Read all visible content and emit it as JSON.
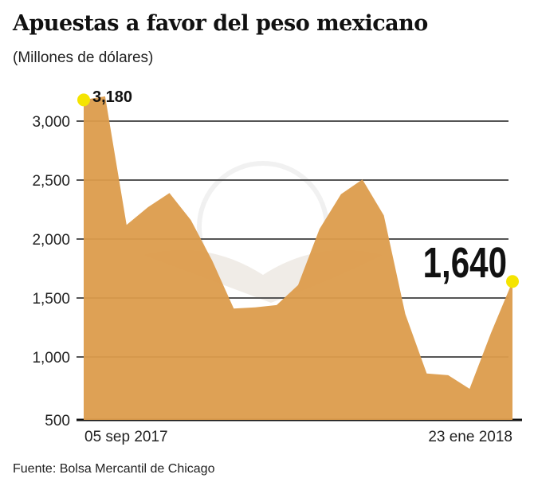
{
  "title": "Apuestas a favor del peso mexicano",
  "subtitle": "(Millones de dólares)",
  "source": "Fuente: Bolsa Mercantil de Chicago",
  "colors": {
    "area": "#DC9C4C",
    "highlight": "#F5E400",
    "grid": "#555555"
  },
  "chart_data": {
    "type": "area",
    "title": "Apuestas a favor del peso mexicano",
    "ylabel": "(Millones de dólares)",
    "ylim": [
      500,
      3200
    ],
    "yticks": [
      500,
      1000,
      1500,
      2000,
      2500,
      3000
    ],
    "ytick_labels": [
      "500",
      "1,000",
      "1,500",
      "2,000",
      "2,500",
      "3,000"
    ],
    "xtick_labels": [
      "05 sep 2017",
      "23 ene 2018"
    ],
    "grid": true,
    "x": [
      "2017-09-05",
      "2017-09-12",
      "2017-09-19",
      "2017-09-26",
      "2017-10-03",
      "2017-10-10",
      "2017-10-17",
      "2017-10-24",
      "2017-10-31",
      "2017-11-07",
      "2017-11-14",
      "2017-11-21",
      "2017-11-28",
      "2017-12-05",
      "2017-12-12",
      "2017-12-19",
      "2017-12-26",
      "2018-01-02",
      "2018-01-09",
      "2018-01-16",
      "2018-01-23"
    ],
    "values": [
      3180,
      3210,
      2120,
      2270,
      2390,
      2160,
      1815,
      1410,
      1420,
      1440,
      1610,
      2085,
      2380,
      2505,
      2200,
      1365,
      860,
      845,
      730,
      1205,
      1640
    ],
    "annotations": [
      {
        "index": 0,
        "label": "3,180"
      },
      {
        "index": 20,
        "label": "1,640"
      }
    ]
  }
}
